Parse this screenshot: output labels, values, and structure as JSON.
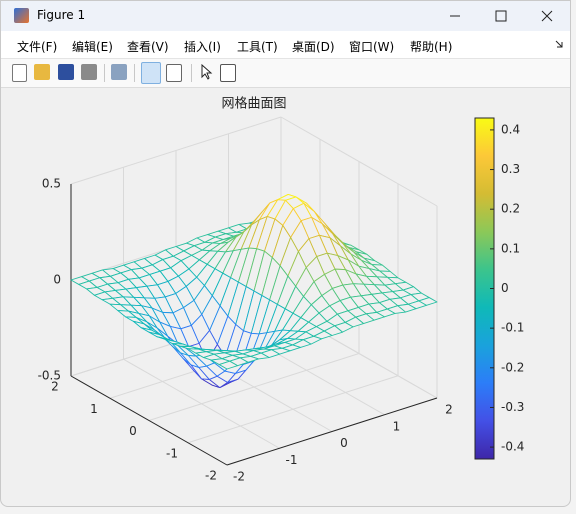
{
  "window": {
    "title": "Figure 1"
  },
  "menu": [
    "文件(F)",
    "编辑(E)",
    "查看(V)",
    "插入(I)",
    "工具(T)",
    "桌面(D)",
    "窗口(W)",
    "帮助(H)"
  ],
  "chart_data": {
    "type": "mesh",
    "title": "网格曲面图",
    "x": [
      -2,
      -1.8,
      -1.6,
      -1.4,
      -1.2,
      -1,
      -0.8,
      -0.6,
      -0.4,
      -0.2,
      0,
      0.2,
      0.4,
      0.6,
      0.8,
      1,
      1.2,
      1.4,
      1.6,
      1.8,
      2
    ],
    "y": [
      -2,
      -1.8,
      -1.6,
      -1.4,
      -1.2,
      -1,
      -0.8,
      -0.6,
      -0.4,
      -0.2,
      0,
      0.2,
      0.4,
      0.6,
      0.8,
      1,
      1.2,
      1.4,
      1.6,
      1.8,
      2
    ],
    "z": [
      [
        0,
        0,
        0,
        0,
        -0.01,
        -0.01,
        -0.01,
        -0.01,
        -0.01,
        0,
        0,
        0,
        0.01,
        0.01,
        0.01,
        0.01,
        0.01,
        0,
        0,
        0,
        0
      ],
      [
        0,
        0,
        0,
        -0.01,
        -0.01,
        -0.01,
        -0.02,
        -0.02,
        -0.01,
        -0.01,
        0,
        0.01,
        0.01,
        0.02,
        0.02,
        0.01,
        0.01,
        0.01,
        0,
        0,
        0
      ],
      [
        0,
        -0.01,
        -0.01,
        -0.02,
        -0.02,
        -0.03,
        -0.03,
        -0.03,
        -0.03,
        -0.01,
        0,
        0.01,
        0.03,
        0.03,
        0.03,
        0.03,
        0.02,
        0.02,
        0.01,
        0.01,
        0
      ],
      [
        -0.01,
        -0.01,
        -0.02,
        -0.03,
        -0.04,
        -0.05,
        -0.06,
        -0.06,
        -0.05,
        -0.03,
        0,
        0.03,
        0.05,
        0.06,
        0.06,
        0.05,
        0.04,
        0.03,
        0.02,
        0.01,
        0.01
      ],
      [
        -0.01,
        -0.02,
        -0.03,
        -0.05,
        -0.07,
        -0.09,
        -0.1,
        -0.1,
        -0.08,
        -0.05,
        0,
        0.05,
        0.08,
        0.1,
        0.1,
        0.09,
        0.07,
        0.05,
        0.03,
        0.02,
        0.01
      ],
      [
        -0.01,
        -0.03,
        -0.05,
        -0.07,
        -0.1,
        -0.14,
        -0.16,
        -0.15,
        -0.13,
        -0.07,
        0,
        0.07,
        0.13,
        0.15,
        0.16,
        0.14,
        0.1,
        0.07,
        0.05,
        0.03,
        0.01
      ],
      [
        -0.02,
        -0.04,
        -0.07,
        -0.1,
        -0.15,
        -0.19,
        -0.22,
        -0.22,
        -0.18,
        -0.1,
        0,
        0.1,
        0.18,
        0.22,
        0.22,
        0.19,
        0.15,
        0.1,
        0.07,
        0.04,
        0.02
      ],
      [
        -0.03,
        -0.05,
        -0.09,
        -0.14,
        -0.2,
        -0.26,
        -0.29,
        -0.29,
        -0.24,
        -0.13,
        0,
        0.13,
        0.24,
        0.29,
        0.29,
        0.26,
        0.2,
        0.14,
        0.09,
        0.05,
        0.03
      ],
      [
        -0.03,
        -0.06,
        -0.11,
        -0.17,
        -0.24,
        -0.31,
        -0.36,
        -0.36,
        -0.29,
        -0.16,
        0,
        0.16,
        0.29,
        0.36,
        0.36,
        0.31,
        0.24,
        0.17,
        0.11,
        0.06,
        0.03
      ],
      [
        -0.04,
        -0.07,
        -0.12,
        -0.19,
        -0.27,
        -0.35,
        -0.41,
        -0.4,
        -0.33,
        -0.18,
        0,
        0.18,
        0.33,
        0.4,
        0.41,
        0.35,
        0.27,
        0.19,
        0.12,
        0.07,
        0.04
      ],
      [
        -0.04,
        -0.07,
        -0.12,
        -0.2,
        -0.28,
        -0.37,
        -0.42,
        -0.42,
        -0.34,
        -0.19,
        0,
        0.19,
        0.34,
        0.42,
        0.42,
        0.37,
        0.28,
        0.2,
        0.12,
        0.07,
        0.04
      ],
      [
        -0.04,
        -0.07,
        -0.12,
        -0.19,
        -0.27,
        -0.35,
        -0.41,
        -0.4,
        -0.33,
        -0.18,
        0,
        0.18,
        0.33,
        0.4,
        0.41,
        0.35,
        0.27,
        0.19,
        0.12,
        0.07,
        0.04
      ],
      [
        -0.03,
        -0.06,
        -0.11,
        -0.17,
        -0.24,
        -0.31,
        -0.36,
        -0.36,
        -0.29,
        -0.16,
        0,
        0.16,
        0.29,
        0.36,
        0.36,
        0.31,
        0.24,
        0.17,
        0.11,
        0.06,
        0.03
      ],
      [
        -0.03,
        -0.05,
        -0.09,
        -0.14,
        -0.2,
        -0.26,
        -0.29,
        -0.29,
        -0.24,
        -0.13,
        0,
        0.13,
        0.24,
        0.29,
        0.29,
        0.26,
        0.2,
        0.14,
        0.09,
        0.05,
        0.03
      ],
      [
        -0.02,
        -0.04,
        -0.07,
        -0.1,
        -0.15,
        -0.19,
        -0.22,
        -0.22,
        -0.18,
        -0.1,
        0,
        0.1,
        0.18,
        0.22,
        0.22,
        0.19,
        0.15,
        0.1,
        0.07,
        0.04,
        0.02
      ],
      [
        -0.01,
        -0.03,
        -0.05,
        -0.07,
        -0.1,
        -0.14,
        -0.16,
        -0.15,
        -0.13,
        -0.07,
        0,
        0.07,
        0.13,
        0.15,
        0.16,
        0.14,
        0.1,
        0.07,
        0.05,
        0.03,
        0.01
      ],
      [
        -0.01,
        -0.02,
        -0.03,
        -0.05,
        -0.07,
        -0.09,
        -0.1,
        -0.1,
        -0.08,
        -0.05,
        0,
        0.05,
        0.08,
        0.1,
        0.1,
        0.09,
        0.07,
        0.05,
        0.03,
        0.02,
        0.01
      ],
      [
        -0.01,
        -0.01,
        -0.02,
        -0.03,
        -0.04,
        -0.05,
        -0.06,
        -0.06,
        -0.05,
        -0.03,
        0,
        0.03,
        0.05,
        0.06,
        0.06,
        0.05,
        0.04,
        0.03,
        0.02,
        0.01,
        0.01
      ],
      [
        0,
        -0.01,
        -0.01,
        -0.02,
        -0.02,
        -0.03,
        -0.03,
        -0.03,
        -0.03,
        -0.01,
        0,
        0.01,
        0.03,
        0.03,
        0.03,
        0.03,
        0.02,
        0.02,
        0.01,
        0.01,
        0
      ],
      [
        0,
        0,
        0,
        -0.01,
        -0.01,
        -0.01,
        -0.02,
        -0.02,
        -0.01,
        -0.01,
        0,
        0.01,
        0.01,
        0.02,
        0.02,
        0.01,
        0.01,
        0.01,
        0,
        0,
        0
      ],
      [
        0,
        0,
        0,
        0,
        -0.01,
        -0.01,
        -0.01,
        -0.01,
        -0.01,
        0,
        0,
        0,
        0.01,
        0.01,
        0.01,
        0.01,
        0.01,
        0,
        0,
        0,
        0
      ]
    ],
    "xlim": [
      -2,
      2
    ],
    "ylim": [
      -2,
      2
    ],
    "zlim": [
      -0.5,
      0.5
    ],
    "xticks": [
      -2,
      -1,
      0,
      1,
      2
    ],
    "yticks": [
      -2,
      -1,
      0,
      1,
      2
    ],
    "zticks": [
      -0.5,
      0,
      0.5
    ],
    "grid": true,
    "colorbar": {
      "clim": [
        -0.43,
        0.43
      ],
      "ticks": [
        -0.4,
        -0.3,
        -0.2,
        -0.1,
        0,
        0.1,
        0.2,
        0.3,
        0.4
      ]
    },
    "colormap": [
      "#3e26a8",
      "#4350e6",
      "#2c7df8",
      "#1aa2dc",
      "#0fb9b8",
      "#3cc48c",
      "#8cc858",
      "#d4bc33",
      "#fcc838",
      "#f9fb15"
    ]
  }
}
